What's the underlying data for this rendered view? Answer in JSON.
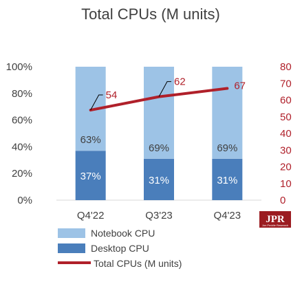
{
  "chart_data": {
    "type": "bar",
    "title": "Total CPUs (M units)",
    "categories": [
      "Q4'22",
      "Q3'23",
      "Q4'23"
    ],
    "stacked": true,
    "percent_stacked": true,
    "series": [
      {
        "name": "Desktop CPU",
        "values": [
          37,
          31,
          31
        ],
        "labels": [
          "37%",
          "31%",
          "31%"
        ],
        "color": "#4a7ebb"
      },
      {
        "name": "Notebook CPU",
        "values": [
          63,
          69,
          69
        ],
        "labels": [
          "63%",
          "69%",
          "69%"
        ],
        "color": "#9dc3e6"
      }
    ],
    "line_series": {
      "name": "Total CPUs (M units)",
      "values": [
        54,
        62,
        67
      ],
      "labels": [
        "54",
        "62",
        "67"
      ],
      "axis": "right",
      "color": "#b0202a"
    },
    "left_axis": {
      "ylim": [
        0,
        100
      ],
      "ticks": [
        "0%",
        "20%",
        "40%",
        "60%",
        "80%",
        "100%"
      ]
    },
    "right_axis": {
      "ylim": [
        0,
        80
      ],
      "ticks": [
        "0",
        "10",
        "20",
        "30",
        "40",
        "50",
        "60",
        "70",
        "80"
      ],
      "color": "#b0202a"
    },
    "legend": {
      "placement": "bottom",
      "entries": [
        "Notebook CPU",
        "Desktop CPU",
        "Total CPUs (M units)"
      ]
    },
    "grid": false
  },
  "logo": {
    "text": "JPR",
    "subtext": "Jon Peddie Research"
  }
}
